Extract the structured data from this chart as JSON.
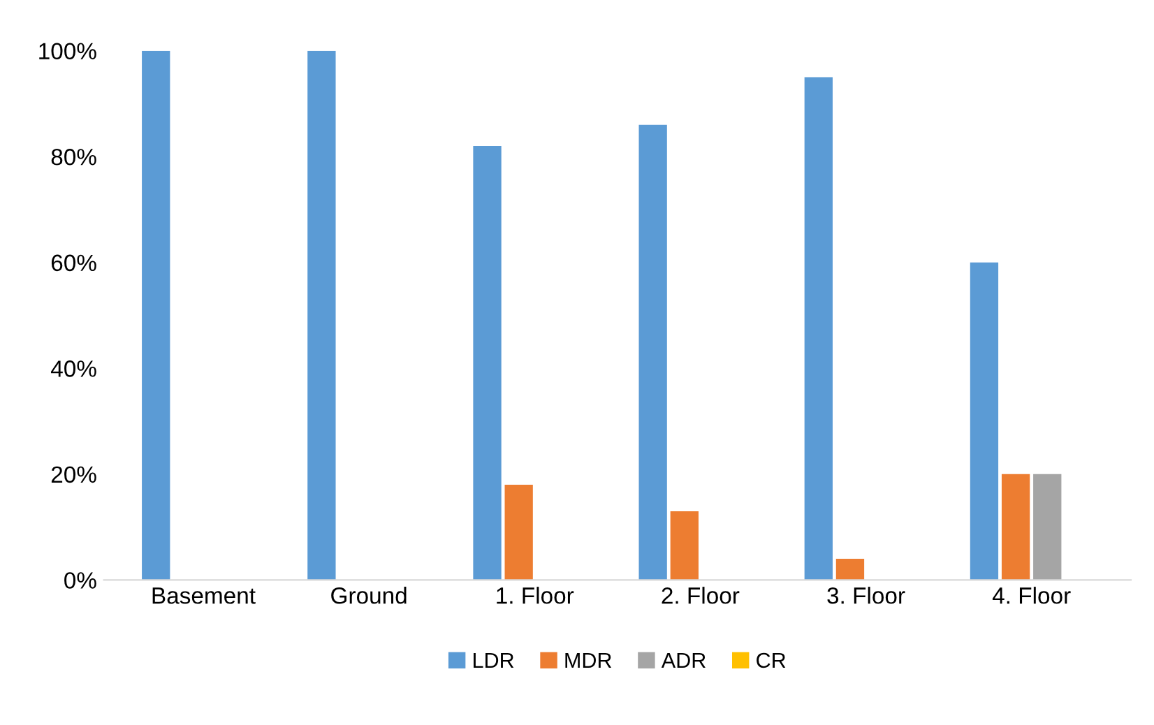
{
  "chart_data": {
    "type": "bar",
    "categories": [
      "Basement",
      "Ground",
      "1. Floor",
      "2. Floor",
      "3. Floor",
      "4. Floor"
    ],
    "series": [
      {
        "name": "LDR",
        "color": "#5b9bd5",
        "values": [
          100,
          100,
          82,
          86,
          95,
          60
        ]
      },
      {
        "name": "MDR",
        "color": "#ed7d31",
        "values": [
          0,
          0,
          18,
          13,
          4,
          20
        ]
      },
      {
        "name": "ADR",
        "color": "#a5a5a5",
        "values": [
          0,
          0,
          0,
          0,
          0,
          20
        ]
      },
      {
        "name": "CR",
        "color": "#ffc000",
        "values": [
          0,
          0,
          0,
          0,
          0,
          0
        ]
      }
    ],
    "ylim": [
      0,
      100
    ],
    "yticks": [
      {
        "value": 0,
        "label": "0%"
      },
      {
        "value": 20,
        "label": "20%"
      },
      {
        "value": 40,
        "label": "40%"
      },
      {
        "value": 60,
        "label": "60%"
      },
      {
        "value": 80,
        "label": "80%"
      },
      {
        "value": 100,
        "label": "100%"
      }
    ],
    "grid": false,
    "legend": "bottom"
  }
}
